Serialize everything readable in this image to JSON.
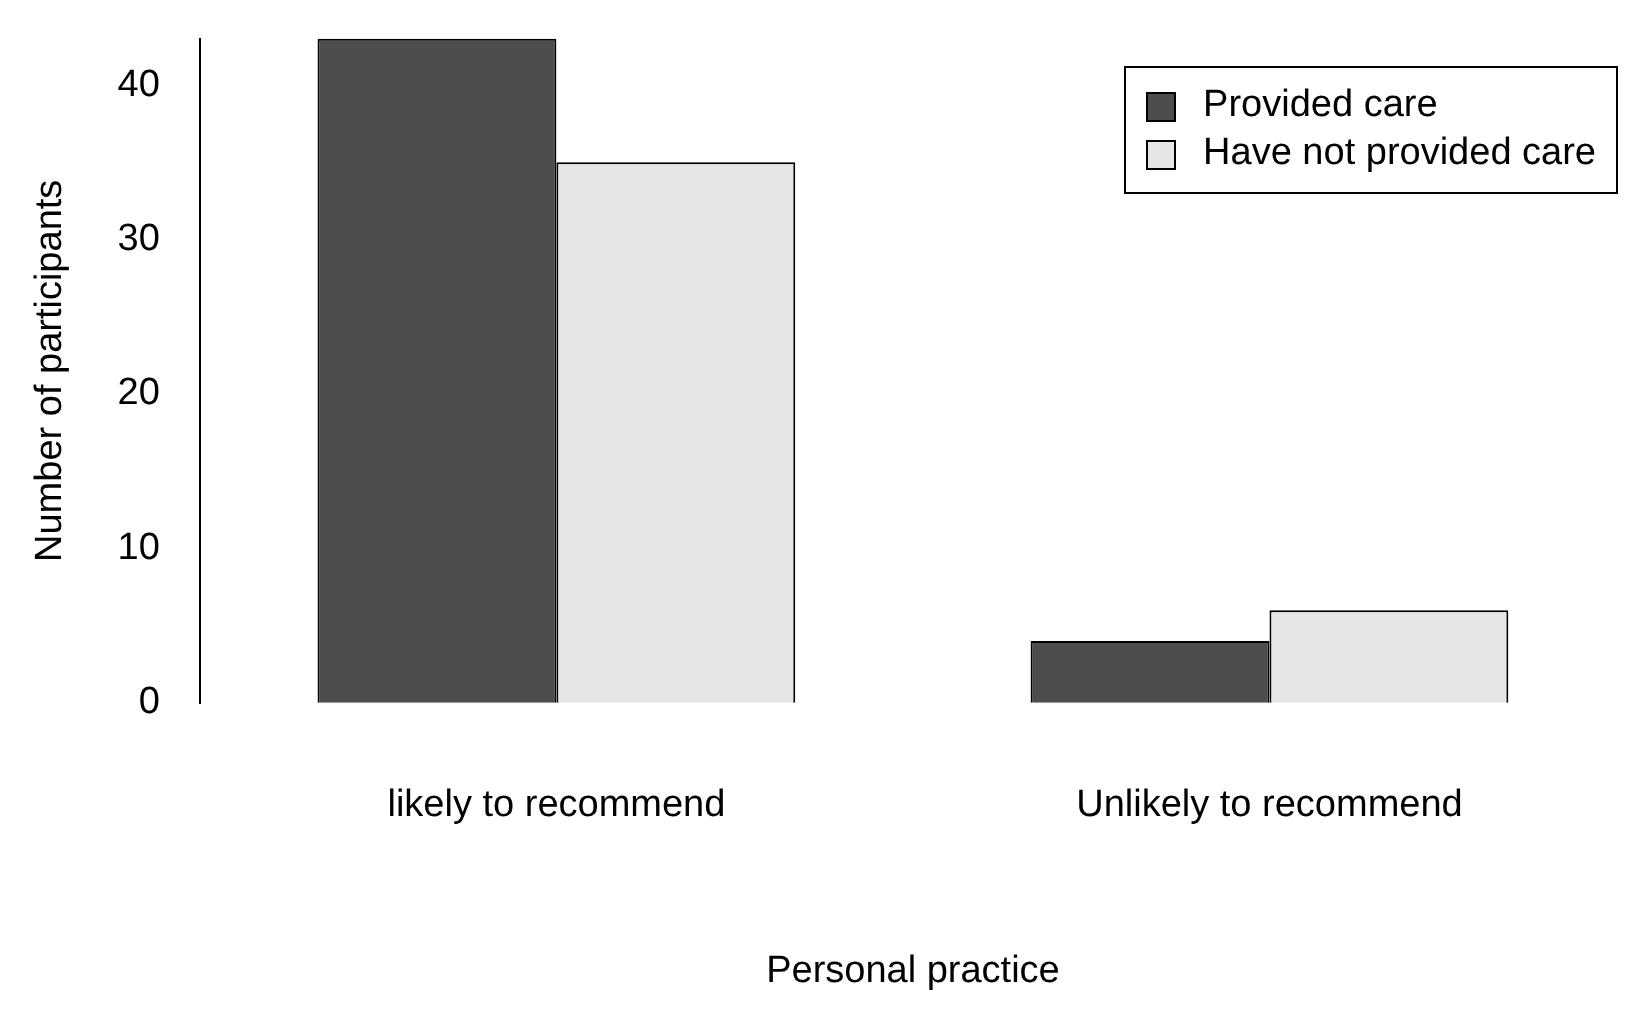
{
  "chart_data": {
    "type": "bar",
    "xlabel": "Personal practice",
    "ylabel": "Number of participants",
    "categories": [
      "likely to recommend",
      "Unlikely to recommend"
    ],
    "series": [
      {
        "name": "Provided care",
        "color": "#4d4d4d",
        "values": [
          43,
          4
        ]
      },
      {
        "name": "Have not provided care",
        "color": "#e6e6e6",
        "values": [
          35,
          6
        ]
      }
    ],
    "ylim": [
      0,
      43
    ],
    "yticks": [
      0,
      10,
      20,
      30,
      40
    ],
    "grid": false,
    "legend": "top right"
  }
}
